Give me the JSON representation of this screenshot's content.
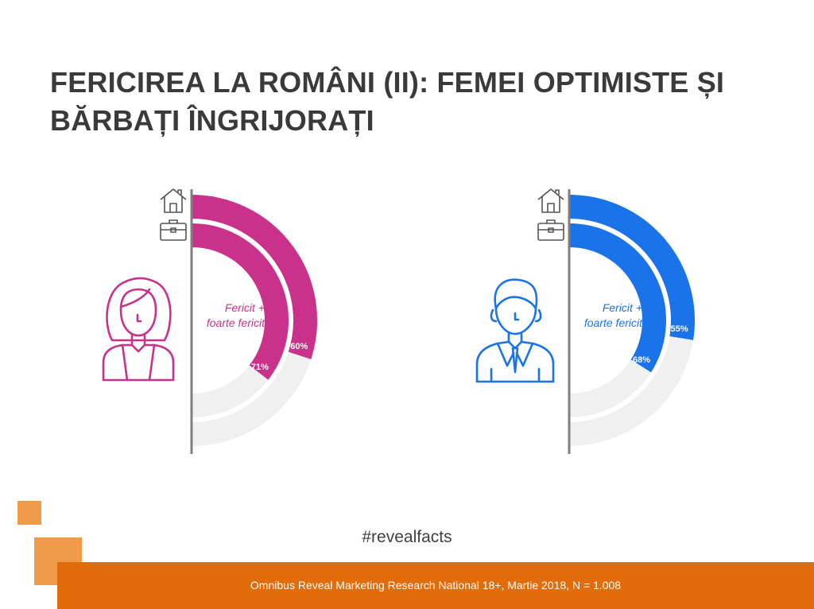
{
  "title": {
    "line1": "FERICIREA LA ROMÂNI (II): FEMEI OPTIMISTE ȘI",
    "line2": "BĂRBAȚI ÎNGRIJORAȚI"
  },
  "icons": {
    "woman": "woman-avatar-icon",
    "man": "man-avatar-icon",
    "home": "home-icon",
    "work": "briefcase-icon"
  },
  "colors": {
    "women": "#c9318a",
    "men": "#1a73e8",
    "track": "#f0f0f0",
    "axis": "#7f7f7f",
    "accent": "#e36c0a",
    "accent_light": "#ef9b4a"
  },
  "chart_data": [
    {
      "type": "radial_bar",
      "group": "women",
      "label": "Fericit + foarte fericit",
      "label_line1": "Fericit +",
      "label_line2": "foarte fericit",
      "categories": [
        "home-icon",
        "briefcase-icon"
      ],
      "values": [
        60,
        71
      ],
      "value_labels": [
        "60%",
        "71%"
      ],
      "max": 100
    },
    {
      "type": "radial_bar",
      "group": "men",
      "label": "Fericit + foarte fericit",
      "label_line1": "Fericit +",
      "label_line2": "foarte fericit",
      "categories": [
        "home-icon",
        "briefcase-icon"
      ],
      "values": [
        55,
        68
      ],
      "value_labels": [
        "55%",
        "68%"
      ],
      "max": 100
    }
  ],
  "hashtag": "#revealfacts",
  "footer": "Omnibus Reveal Marketing Research National 18+, Martie 2018, N = 1.008"
}
